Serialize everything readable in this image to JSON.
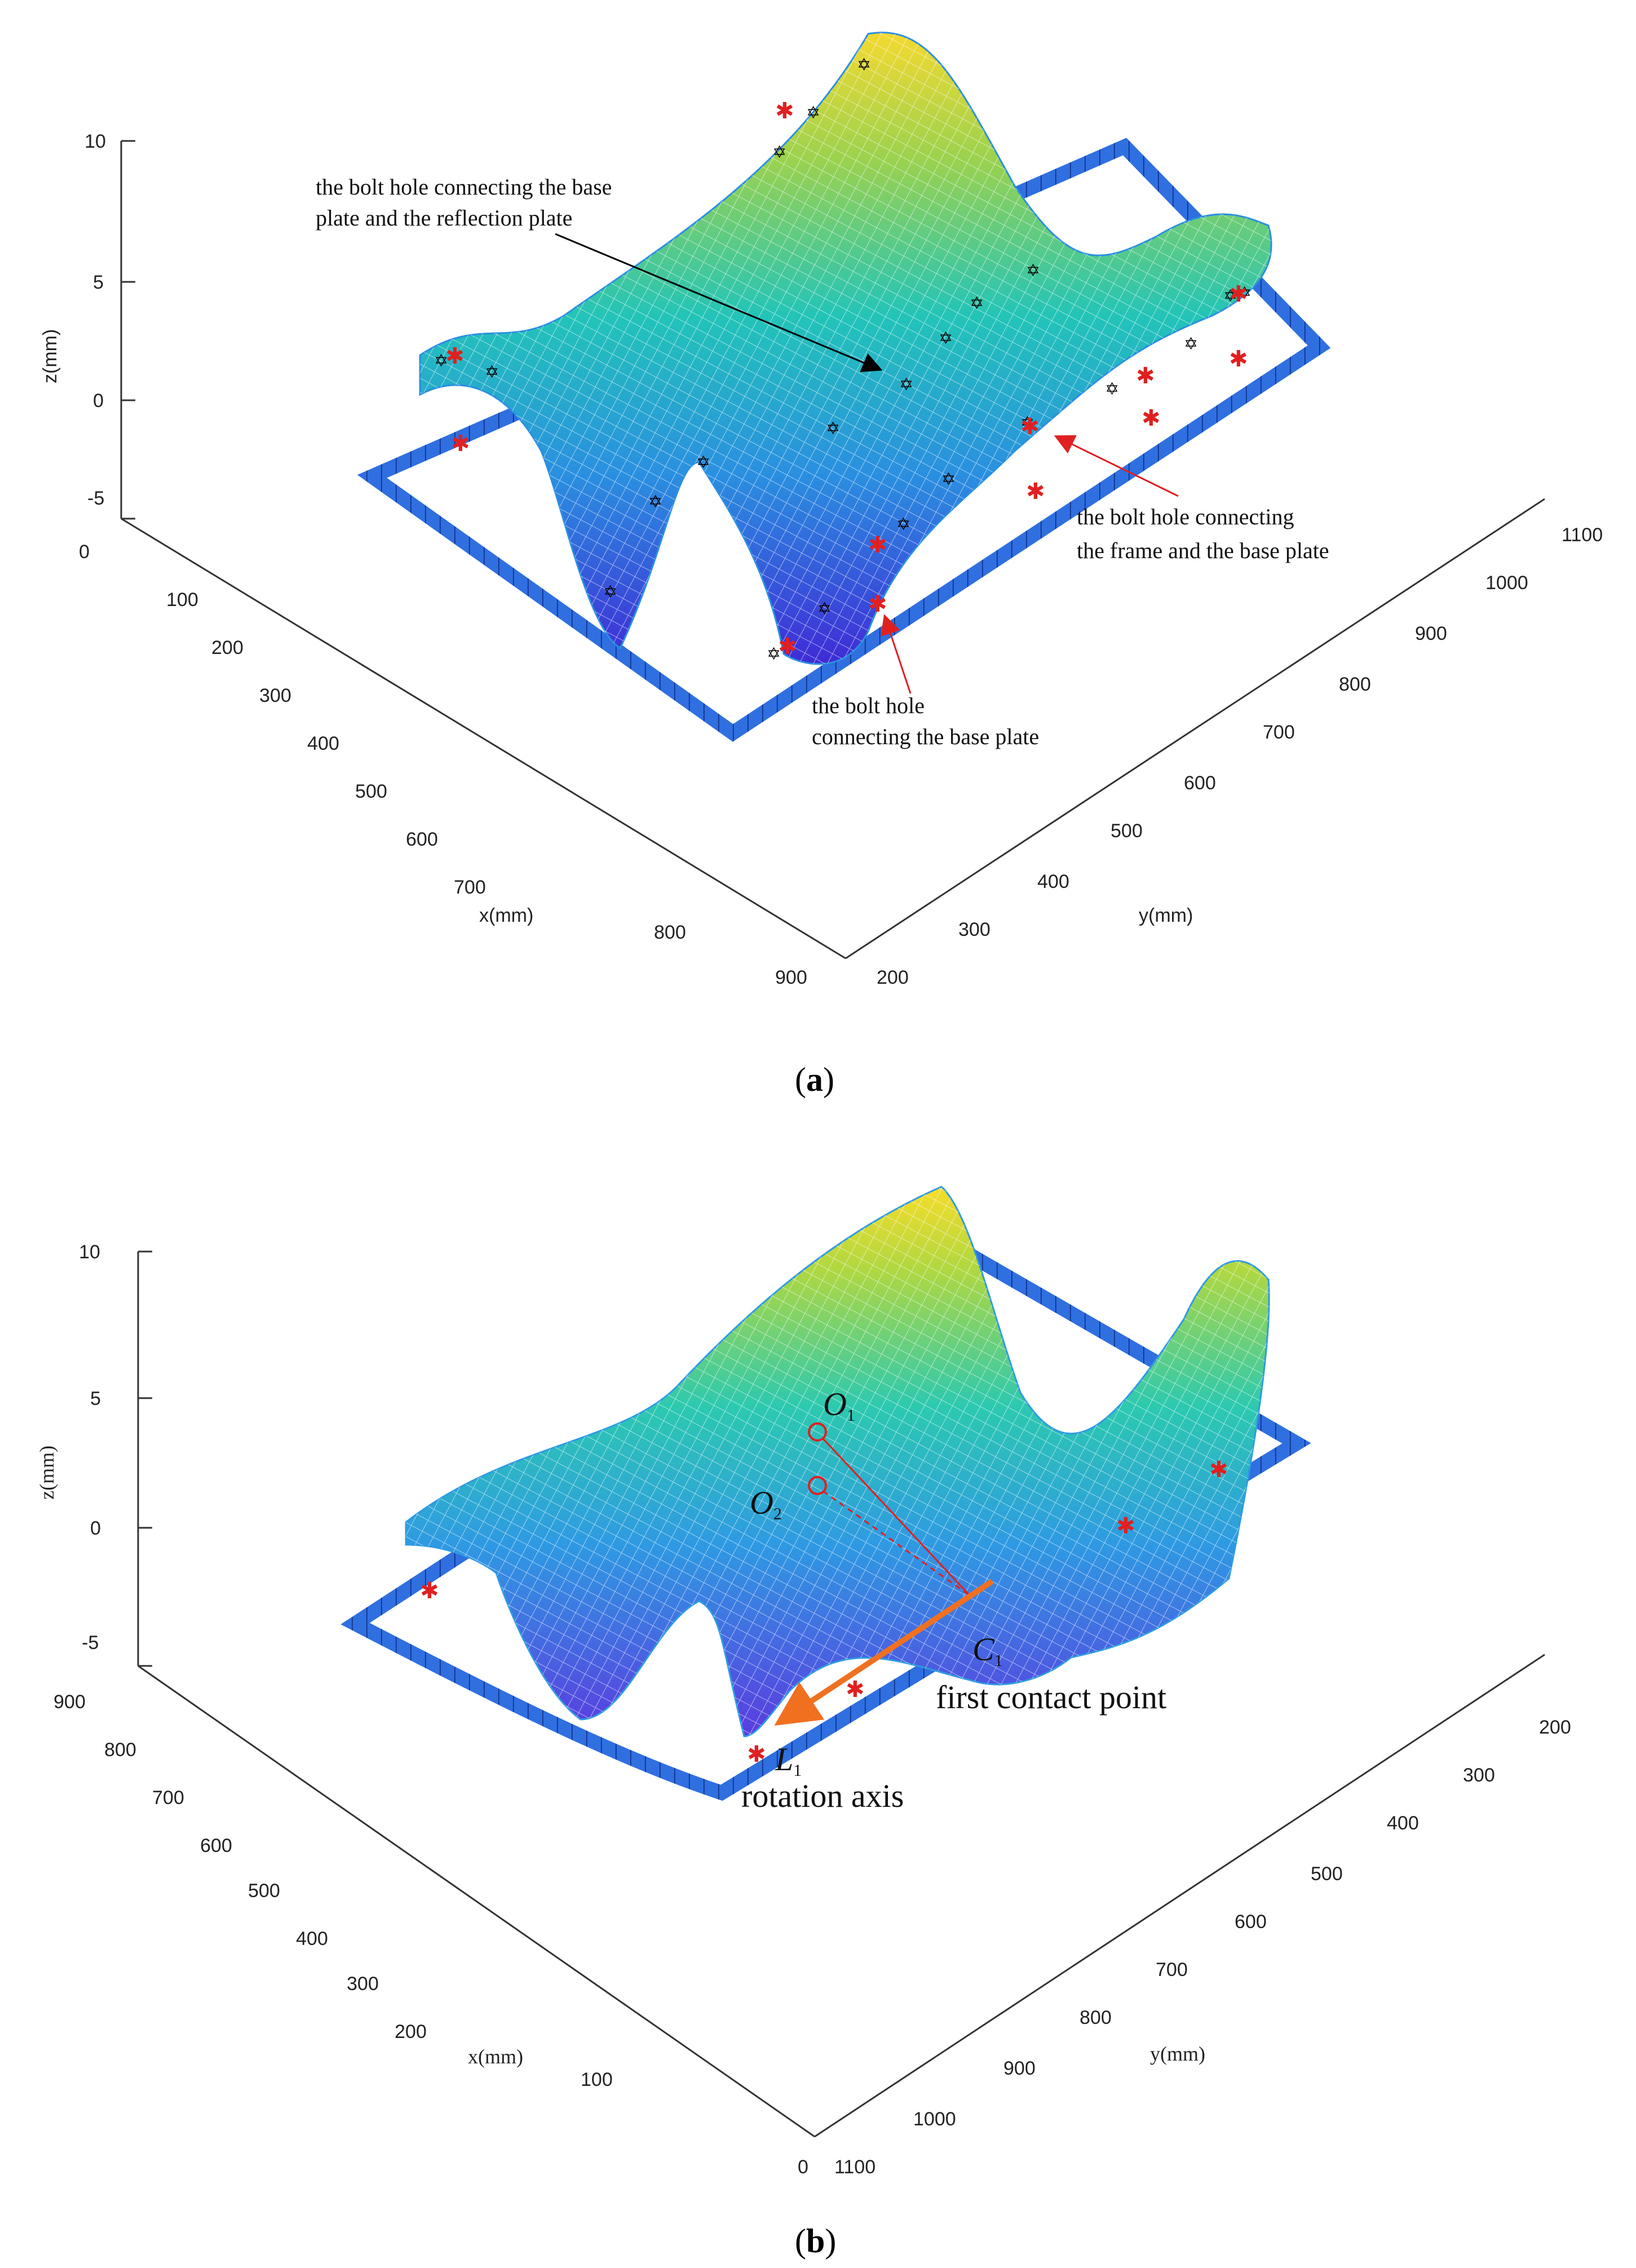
{
  "chart_data": [
    {
      "type": "surface",
      "panel_label": "a",
      "xlabel": "x(mm)",
      "ylabel": "y(mm)",
      "zlabel": "z(mm)",
      "x_ticks": [
        0,
        100,
        200,
        300,
        400,
        500,
        600,
        700,
        800,
        900
      ],
      "y_ticks": [
        200,
        300,
        400,
        500,
        600,
        700,
        800,
        900,
        1000,
        1100
      ],
      "z_ticks": [
        -5,
        0,
        5,
        10
      ],
      "xlim": [
        0,
        900
      ],
      "ylim": [
        200,
        1100
      ],
      "zlim": [
        -5,
        10
      ],
      "colormap": [
        "#3f2bd6",
        "#2a8fe0",
        "#22c4b8",
        "#9bd24e",
        "#f5d930"
      ],
      "frame_color": "#2f6fe0",
      "annotations": [
        {
          "lines": [
            "the bolt hole connecting the base",
            "plate and the reflection plate"
          ],
          "arrow_color": "#000000"
        },
        {
          "lines": [
            "the bolt hole connecting",
            "the frame and the base plate"
          ],
          "arrow_color": "#e02020"
        },
        {
          "lines": [
            "the bolt hole",
            "connecting the base plate"
          ],
          "arrow_color": "#e02020"
        }
      ]
    },
    {
      "type": "surface",
      "panel_label": "b",
      "xlabel": "x(mm)",
      "ylabel": "y(mm)",
      "zlabel": "z(mm)",
      "x_ticks": [
        900,
        800,
        700,
        600,
        500,
        400,
        300,
        200,
        100,
        0
      ],
      "y_ticks": [
        200,
        300,
        400,
        500,
        600,
        700,
        800,
        900,
        1000,
        1100
      ],
      "z_ticks": [
        -5,
        0,
        5,
        10
      ],
      "xlim": [
        0,
        900
      ],
      "ylim": [
        200,
        1100
      ],
      "zlim": [
        -5,
        10
      ],
      "points": [
        {
          "label": "O",
          "sub": "1"
        },
        {
          "label": "O",
          "sub": "2"
        },
        {
          "label": "C",
          "sub": "1"
        },
        {
          "label": "L",
          "sub": "1"
        }
      ],
      "annotations": [
        {
          "text": "first contact point"
        },
        {
          "text": "rotation axis"
        }
      ],
      "arrow_color": "#f07020"
    }
  ]
}
